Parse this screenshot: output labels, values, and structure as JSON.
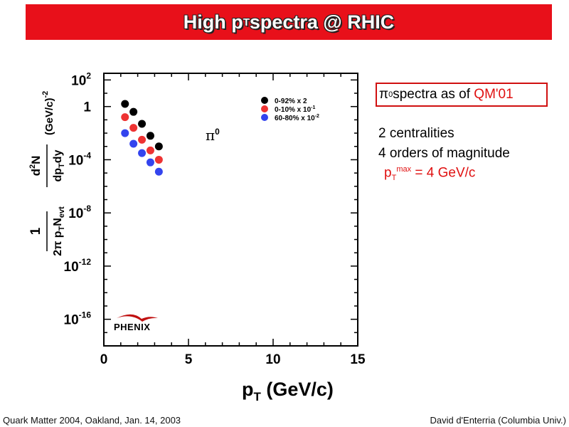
{
  "slide_title": "High pT spectra @ RHIC",
  "title_parts": {
    "before": "High p",
    "sub": "T",
    "after": " spectra @ RHIC"
  },
  "info_box": {
    "prefix": "π",
    "sup": "0",
    "middle": " spectra as of ",
    "highlight": "QM'01"
  },
  "notes": {
    "line1": "2 centralities",
    "line2": "4 orders of magnitude",
    "line3_prefix": "p",
    "line3_sub": "T",
    "line3_sup": "max",
    "line3_suffix": " = 4 GeV/c"
  },
  "footer": {
    "left": "Quark Matter 2004, Oakland, Jan. 14, 2003",
    "right": "David d'Enterria (Columbia Univ.)"
  },
  "chart_data": {
    "type": "scatter",
    "title": "",
    "xlabel": "pT (GeV/c)",
    "ylabel": "1/(2π pT Nevt) d2N/dpTdy (GeV/c)^-2",
    "xlim": [
      0,
      15
    ],
    "ylim_log10": [
      -18,
      2.5
    ],
    "y_scale": "log",
    "x_ticks": [
      "0",
      "5",
      "10",
      "15"
    ],
    "y_ticks": [
      {
        "base": "10",
        "exp": "2",
        "log": 2
      },
      {
        "base": "1",
        "exp": "",
        "log": 0
      },
      {
        "base": "10",
        "exp": "-4",
        "log": -4
      },
      {
        "base": "10",
        "exp": "-8",
        "log": -8
      },
      {
        "base": "10",
        "exp": "-12",
        "log": -12
      },
      {
        "base": "10",
        "exp": "-16",
        "log": -16
      }
    ],
    "annotation": "π0",
    "logo_text": "PHENIX",
    "legend_position": "top-right",
    "series": [
      {
        "name": "0-92% x 2",
        "color": "#000000",
        "x": [
          1.25,
          1.75,
          2.25,
          2.75,
          3.25
        ],
        "log10y": [
          0.2,
          -0.4,
          -1.3,
          -2.2,
          -3.0
        ]
      },
      {
        "name": "0-10% x 10-1",
        "color": "#ee3333",
        "x": [
          1.25,
          1.75,
          2.25,
          2.75,
          3.25
        ],
        "log10y": [
          -0.8,
          -1.6,
          -2.5,
          -3.3,
          -4.0
        ]
      },
      {
        "name": "60-80% x 10-2",
        "color": "#3344ee",
        "x": [
          1.25,
          1.75,
          2.25,
          2.75,
          3.25
        ],
        "log10y": [
          -2.0,
          -2.8,
          -3.5,
          -4.2,
          -4.9
        ]
      }
    ]
  }
}
